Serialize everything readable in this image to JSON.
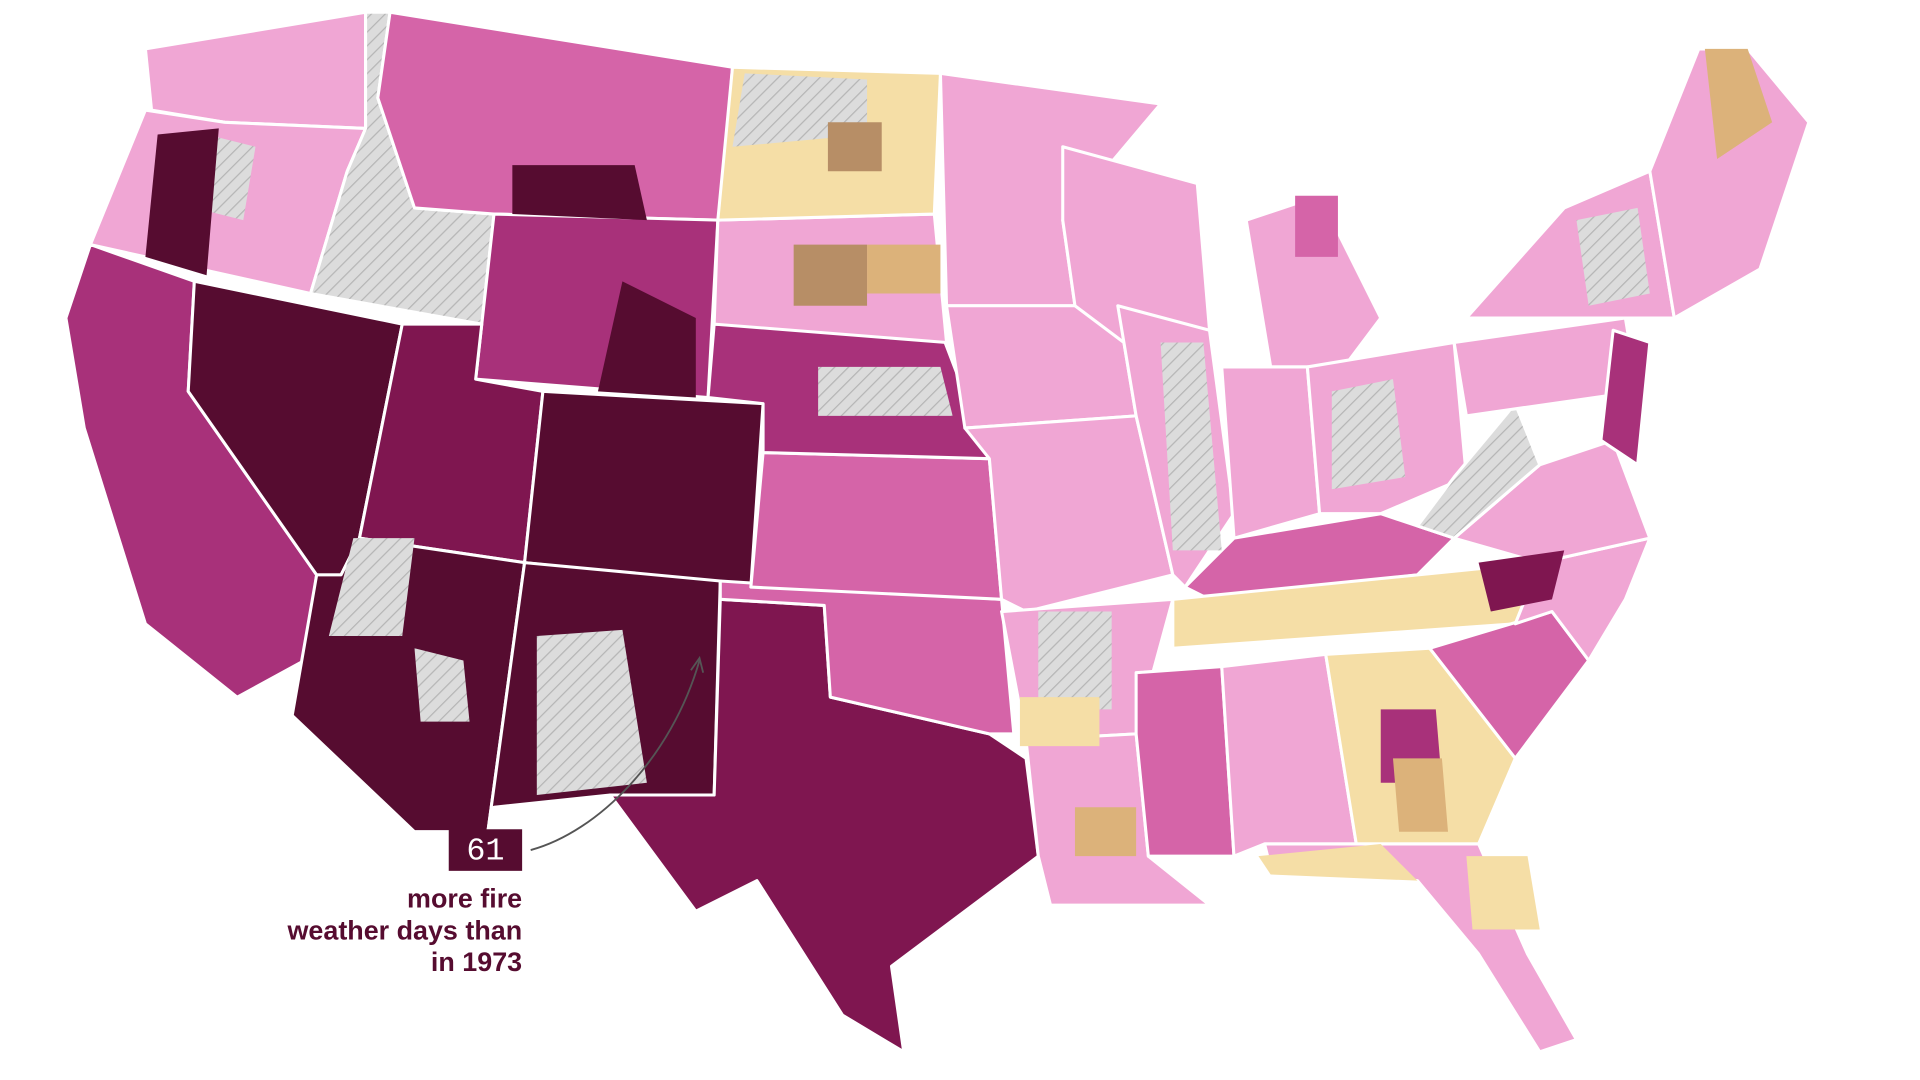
{
  "annotation": {
    "value": 61,
    "lines": [
      "more fire",
      "weather days than",
      "in 1973"
    ]
  }
}
